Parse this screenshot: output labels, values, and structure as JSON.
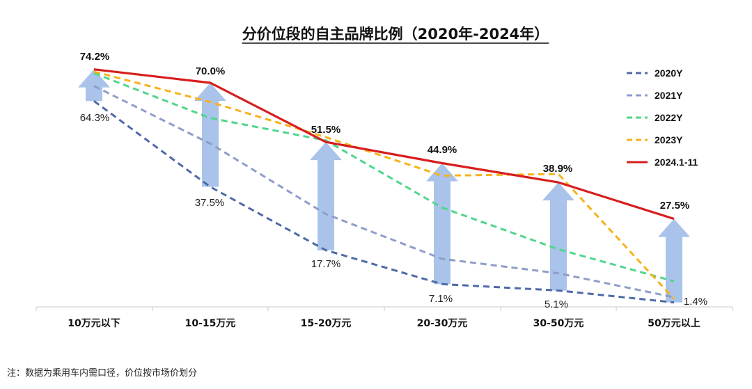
{
  "chart_data": {
    "type": "line",
    "title": "分价位段的自主品牌比例（2020年-2024年）",
    "categories": [
      "10万元以下",
      "10-15万元",
      "15-20万元",
      "20-30万元",
      "30-50万元",
      "50万元以上"
    ],
    "ylim": [
      0,
      80
    ],
    "grid": false,
    "legend_position": "right",
    "series": [
      {
        "name": "2020Y",
        "values": [
          64.3,
          37.5,
          17.7,
          7.1,
          5.1,
          1.4
        ],
        "color": "#4e6aa6",
        "style": "dashed"
      },
      {
        "name": "2021Y",
        "values": [
          69.0,
          51.0,
          29.0,
          15.0,
          10.5,
          3.0
        ],
        "color": "#8e9ec9",
        "style": "dashed"
      },
      {
        "name": "2022Y",
        "values": [
          73.0,
          59.0,
          52.0,
          31.0,
          18.0,
          8.0
        ],
        "color": "#4fd68a",
        "style": "dashed"
      },
      {
        "name": "2023Y",
        "values": [
          73.5,
          64.0,
          53.0,
          41.0,
          41.5,
          2.5
        ],
        "color": "#f7b21b",
        "style": "dashed"
      },
      {
        "name": "2024.1-11",
        "values": [
          74.2,
          70.0,
          51.5,
          44.9,
          38.9,
          27.5
        ],
        "color": "#d71d1d",
        "style": "solid"
      }
    ],
    "data_labels": {
      "top": [
        "74.2%",
        "70.0%",
        "51.5%",
        "44.9%",
        "38.9%",
        "27.5%"
      ],
      "bottom": [
        "64.3%",
        "37.5%",
        "17.7%",
        "7.1%",
        "5.1%",
        "1.4%"
      ]
    },
    "arrow_color": "#a9c3ea",
    "axis_color": "#c8c8c8"
  },
  "note": "注：数据为乘用车内需口径，价位按市场价划分"
}
